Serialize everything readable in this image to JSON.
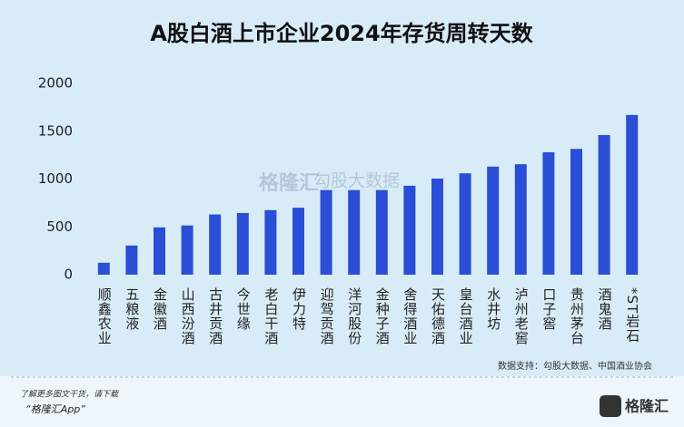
{
  "chart_data": {
    "type": "bar",
    "title": "A股白酒上市企业2024年存货周转天数",
    "categories": [
      "顺鑫农业",
      "五粮液",
      "金徽酒",
      "山西汾酒",
      "古井贡酒",
      "今世缘",
      "老白干酒",
      "伊力特",
      "迎驾贡酒",
      "洋河股份",
      "金种子酒",
      "舍得酒业",
      "天佑德酒",
      "皇台酒业",
      "水井坊",
      "泸州老窖",
      "口子窖",
      "贵州茅台",
      "酒鬼酒",
      "*ST岩石"
    ],
    "values": [
      125,
      305,
      495,
      515,
      630,
      645,
      675,
      700,
      885,
      885,
      885,
      930,
      1005,
      1060,
      1130,
      1155,
      1280,
      1315,
      1460,
      1670
    ],
    "color": "#2a4ed6",
    "ylim": [
      0,
      2000
    ],
    "yticks": [
      0,
      500,
      1000,
      1500,
      2000
    ],
    "grid": false,
    "source": "数据支持：勾股大数据、中国酒业协会"
  },
  "watermark": {
    "brand": "格隆汇",
    "partner": "勾股大数据"
  },
  "footer": {
    "line1": "了解更多图文干货，请下载",
    "line2": "“格隆汇App”",
    "logo": "格隆汇"
  }
}
